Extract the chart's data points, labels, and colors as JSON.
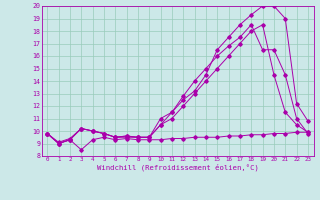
{
  "xlabel": "Windchill (Refroidissement éolien,°C)",
  "background_color": "#cce8e8",
  "grid_color": "#99ccbb",
  "line_color": "#aa00aa",
  "xlim": [
    -0.5,
    23.5
  ],
  "ylim": [
    8,
    20
  ],
  "xticks": [
    0,
    1,
    2,
    3,
    4,
    5,
    6,
    7,
    8,
    9,
    10,
    11,
    12,
    13,
    14,
    15,
    16,
    17,
    18,
    19,
    20,
    21,
    22,
    23
  ],
  "yticks": [
    8,
    9,
    10,
    11,
    12,
    13,
    14,
    15,
    16,
    17,
    18,
    19,
    20
  ],
  "series": [
    [
      9.8,
      9.0,
      9.3,
      8.5,
      9.3,
      9.5,
      9.3,
      9.4,
      9.3,
      9.3,
      9.3,
      9.4,
      9.4,
      9.5,
      9.5,
      9.5,
      9.6,
      9.6,
      9.7,
      9.7,
      9.8,
      9.8,
      9.9,
      9.9
    ],
    [
      9.8,
      9.0,
      9.3,
      10.2,
      10.0,
      9.8,
      9.5,
      9.6,
      9.5,
      9.5,
      10.5,
      11.5,
      12.5,
      13.2,
      14.5,
      16.5,
      17.5,
      18.5,
      19.3,
      20.0,
      20.0,
      19.0,
      12.2,
      10.8
    ],
    [
      9.8,
      9.0,
      9.3,
      10.2,
      10.0,
      9.8,
      9.5,
      9.6,
      9.5,
      9.5,
      11.0,
      11.5,
      12.8,
      14.0,
      15.0,
      16.0,
      16.8,
      17.5,
      18.5,
      16.5,
      16.5,
      14.5,
      11.0,
      9.8
    ],
    [
      9.8,
      9.1,
      9.4,
      10.2,
      10.0,
      9.8,
      9.5,
      9.5,
      9.5,
      9.5,
      10.5,
      11.0,
      12.0,
      13.0,
      14.0,
      15.0,
      16.0,
      17.0,
      18.0,
      18.5,
      14.5,
      11.5,
      10.5,
      9.9
    ]
  ]
}
